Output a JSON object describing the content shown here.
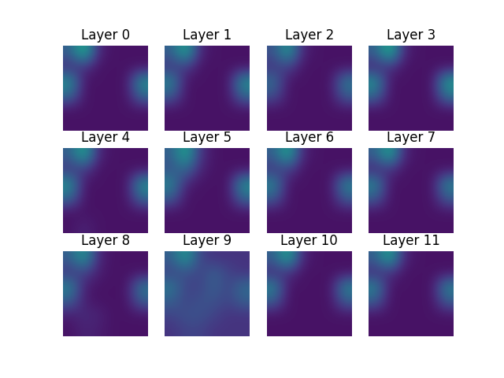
{
  "chart_data": [
    {
      "type": "heatmap",
      "title": "Layer 0",
      "color": "viridis",
      "value_range": [
        0,
        1
      ],
      "tick_labels": false,
      "cells": [
        [
          0.3,
          0.65,
          0.1,
          0.05,
          0.05,
          0.05
        ],
        [
          0.12,
          0.15,
          0.05,
          0.05,
          0.05,
          0.05
        ],
        [
          0.5,
          0.05,
          0.05,
          0.05,
          0.05,
          0.5
        ],
        [
          0.35,
          0.05,
          0.05,
          0.05,
          0.05,
          0.35
        ],
        [
          0.05,
          0.05,
          0.05,
          0.05,
          0.05,
          0.05
        ],
        [
          0.05,
          0.05,
          0.05,
          0.05,
          0.05,
          0.05
        ]
      ]
    },
    {
      "type": "heatmap",
      "title": "Layer 1",
      "color": "viridis",
      "value_range": [
        0,
        1
      ],
      "tick_labels": false,
      "cells": [
        [
          0.3,
          0.6,
          0.1,
          0.05,
          0.05,
          0.05
        ],
        [
          0.15,
          0.18,
          0.05,
          0.05,
          0.05,
          0.05
        ],
        [
          0.45,
          0.05,
          0.05,
          0.05,
          0.05,
          0.5
        ],
        [
          0.3,
          0.05,
          0.05,
          0.05,
          0.05,
          0.35
        ],
        [
          0.05,
          0.05,
          0.05,
          0.05,
          0.05,
          0.05
        ],
        [
          0.05,
          0.05,
          0.05,
          0.05,
          0.05,
          0.05
        ]
      ]
    },
    {
      "type": "heatmap",
      "title": "Layer 2",
      "color": "viridis",
      "value_range": [
        0,
        1
      ],
      "tick_labels": false,
      "cells": [
        [
          0.25,
          0.55,
          0.1,
          0.05,
          0.05,
          0.05
        ],
        [
          0.15,
          0.2,
          0.05,
          0.05,
          0.05,
          0.05
        ],
        [
          0.35,
          0.05,
          0.05,
          0.05,
          0.05,
          0.4
        ],
        [
          0.25,
          0.05,
          0.05,
          0.05,
          0.05,
          0.3
        ],
        [
          0.05,
          0.05,
          0.05,
          0.05,
          0.05,
          0.05
        ],
        [
          0.05,
          0.05,
          0.05,
          0.05,
          0.05,
          0.05
        ]
      ]
    },
    {
      "type": "heatmap",
      "title": "Layer 3",
      "color": "viridis",
      "value_range": [
        0,
        1
      ],
      "tick_labels": false,
      "cells": [
        [
          0.3,
          0.65,
          0.1,
          0.05,
          0.05,
          0.05
        ],
        [
          0.1,
          0.15,
          0.05,
          0.05,
          0.05,
          0.05
        ],
        [
          0.5,
          0.05,
          0.05,
          0.05,
          0.05,
          0.55
        ],
        [
          0.35,
          0.05,
          0.05,
          0.05,
          0.05,
          0.4
        ],
        [
          0.05,
          0.05,
          0.05,
          0.05,
          0.05,
          0.05
        ],
        [
          0.05,
          0.05,
          0.05,
          0.05,
          0.05,
          0.05
        ]
      ]
    },
    {
      "type": "heatmap",
      "title": "Layer 4",
      "color": "viridis",
      "value_range": [
        0,
        1
      ],
      "tick_labels": false,
      "cells": [
        [
          0.3,
          0.6,
          0.1,
          0.05,
          0.05,
          0.05
        ],
        [
          0.15,
          0.18,
          0.05,
          0.05,
          0.05,
          0.05
        ],
        [
          0.5,
          0.05,
          0.05,
          0.05,
          0.05,
          0.5
        ],
        [
          0.35,
          0.05,
          0.05,
          0.05,
          0.05,
          0.35
        ],
        [
          0.05,
          0.05,
          0.05,
          0.05,
          0.05,
          0.05
        ],
        [
          0.05,
          0.1,
          0.05,
          0.05,
          0.05,
          0.05
        ]
      ]
    },
    {
      "type": "heatmap",
      "title": "Layer 5",
      "color": "viridis",
      "value_range": [
        0,
        1
      ],
      "tick_labels": false,
      "cells": [
        [
          0.3,
          0.6,
          0.15,
          0.05,
          0.05,
          0.05
        ],
        [
          0.25,
          0.35,
          0.1,
          0.05,
          0.05,
          0.05
        ],
        [
          0.45,
          0.1,
          0.05,
          0.05,
          0.05,
          0.5
        ],
        [
          0.3,
          0.05,
          0.05,
          0.05,
          0.05,
          0.35
        ],
        [
          0.05,
          0.05,
          0.05,
          0.05,
          0.05,
          0.05
        ],
        [
          0.05,
          0.05,
          0.05,
          0.05,
          0.05,
          0.05
        ]
      ]
    },
    {
      "type": "heatmap",
      "title": "Layer 6",
      "color": "viridis",
      "value_range": [
        0,
        1
      ],
      "tick_labels": false,
      "cells": [
        [
          0.3,
          0.6,
          0.1,
          0.05,
          0.05,
          0.05
        ],
        [
          0.15,
          0.2,
          0.05,
          0.05,
          0.05,
          0.05
        ],
        [
          0.45,
          0.05,
          0.05,
          0.05,
          0.05,
          0.45
        ],
        [
          0.3,
          0.05,
          0.05,
          0.05,
          0.05,
          0.3
        ],
        [
          0.05,
          0.05,
          0.05,
          0.05,
          0.05,
          0.05
        ],
        [
          0.05,
          0.05,
          0.05,
          0.05,
          0.05,
          0.05
        ]
      ]
    },
    {
      "type": "heatmap",
      "title": "Layer 7",
      "color": "viridis",
      "value_range": [
        0,
        1
      ],
      "tick_labels": false,
      "cells": [
        [
          0.3,
          0.6,
          0.1,
          0.05,
          0.05,
          0.05
        ],
        [
          0.1,
          0.15,
          0.05,
          0.05,
          0.05,
          0.05
        ],
        [
          0.45,
          0.05,
          0.05,
          0.05,
          0.05,
          0.45
        ],
        [
          0.3,
          0.05,
          0.05,
          0.05,
          0.05,
          0.3
        ],
        [
          0.05,
          0.05,
          0.05,
          0.05,
          0.05,
          0.05
        ],
        [
          0.05,
          0.05,
          0.05,
          0.05,
          0.05,
          0.05
        ]
      ]
    },
    {
      "type": "heatmap",
      "title": "Layer 8",
      "color": "viridis",
      "value_range": [
        0,
        1
      ],
      "tick_labels": false,
      "cells": [
        [
          0.3,
          0.55,
          0.1,
          0.05,
          0.05,
          0.05
        ],
        [
          0.15,
          0.2,
          0.08,
          0.05,
          0.05,
          0.05
        ],
        [
          0.45,
          0.08,
          0.05,
          0.05,
          0.05,
          0.4
        ],
        [
          0.3,
          0.08,
          0.05,
          0.05,
          0.05,
          0.3
        ],
        [
          0.08,
          0.12,
          0.1,
          0.05,
          0.05,
          0.05
        ],
        [
          0.05,
          0.1,
          0.08,
          0.05,
          0.05,
          0.05
        ]
      ]
    },
    {
      "type": "heatmap",
      "title": "Layer 9",
      "color": "viridis",
      "value_range": [
        0,
        1
      ],
      "tick_labels": false,
      "cells": [
        [
          0.3,
          0.55,
          0.2,
          0.15,
          0.15,
          0.15
        ],
        [
          0.2,
          0.25,
          0.2,
          0.3,
          0.2,
          0.15
        ],
        [
          0.4,
          0.2,
          0.2,
          0.3,
          0.2,
          0.35
        ],
        [
          0.3,
          0.2,
          0.25,
          0.25,
          0.2,
          0.3
        ],
        [
          0.2,
          0.25,
          0.25,
          0.2,
          0.15,
          0.15
        ],
        [
          0.15,
          0.2,
          0.2,
          0.15,
          0.15,
          0.15
        ]
      ]
    },
    {
      "type": "heatmap",
      "title": "Layer 10",
      "color": "viridis",
      "value_range": [
        0,
        1
      ],
      "tick_labels": false,
      "cells": [
        [
          0.3,
          0.6,
          0.1,
          0.05,
          0.05,
          0.05
        ],
        [
          0.12,
          0.15,
          0.05,
          0.05,
          0.05,
          0.05
        ],
        [
          0.45,
          0.05,
          0.05,
          0.05,
          0.05,
          0.45
        ],
        [
          0.3,
          0.05,
          0.05,
          0.05,
          0.05,
          0.3
        ],
        [
          0.05,
          0.05,
          0.05,
          0.05,
          0.05,
          0.05
        ],
        [
          0.05,
          0.05,
          0.05,
          0.05,
          0.05,
          0.05
        ]
      ]
    },
    {
      "type": "heatmap",
      "title": "Layer 11",
      "color": "viridis",
      "value_range": [
        0,
        1
      ],
      "tick_labels": false,
      "cells": [
        [
          0.3,
          0.6,
          0.1,
          0.05,
          0.05,
          0.05
        ],
        [
          0.12,
          0.15,
          0.05,
          0.05,
          0.05,
          0.05
        ],
        [
          0.45,
          0.05,
          0.05,
          0.05,
          0.05,
          0.45
        ],
        [
          0.3,
          0.05,
          0.05,
          0.05,
          0.05,
          0.3
        ],
        [
          0.05,
          0.05,
          0.05,
          0.05,
          0.05,
          0.05
        ],
        [
          0.05,
          0.05,
          0.05,
          0.05,
          0.05,
          0.05
        ]
      ]
    }
  ]
}
